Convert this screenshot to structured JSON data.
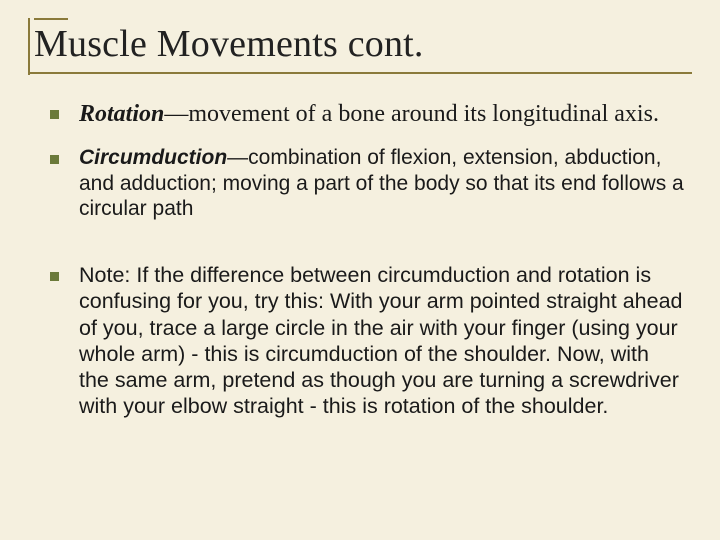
{
  "slide": {
    "title": "Muscle Movements cont.",
    "colors": {
      "background": "#f5f0df",
      "rule": "#8a7a3a",
      "bullet_square": "#6b7a3a",
      "text": "#1a1a1a"
    },
    "title_fontsize": 38,
    "bullets": [
      {
        "term": "Rotation",
        "sep": "—",
        "body": "movement of a bone around its longitudinal axis.",
        "font": "serif",
        "fontsize": 24
      },
      {
        "term": "Circumduction",
        "sep": "—",
        "body": "combination of flexion, extension, abduction, and adduction; moving a part of the body so that its end follows a circular path",
        "font": "sans",
        "fontsize": 21
      },
      {
        "term": "",
        "sep": "",
        "body": "Note: If the difference between circumduction and rotation is confusing for you, try this: With your arm pointed straight ahead of you, trace a large circle in the air with your finger (using your whole arm) - this is circumduction of the shoulder. Now, with the same arm, pretend as though you are turning a screwdriver with your elbow straight - this is rotation of the shoulder.",
        "font": "sans",
        "fontsize": 21.5
      }
    ]
  }
}
